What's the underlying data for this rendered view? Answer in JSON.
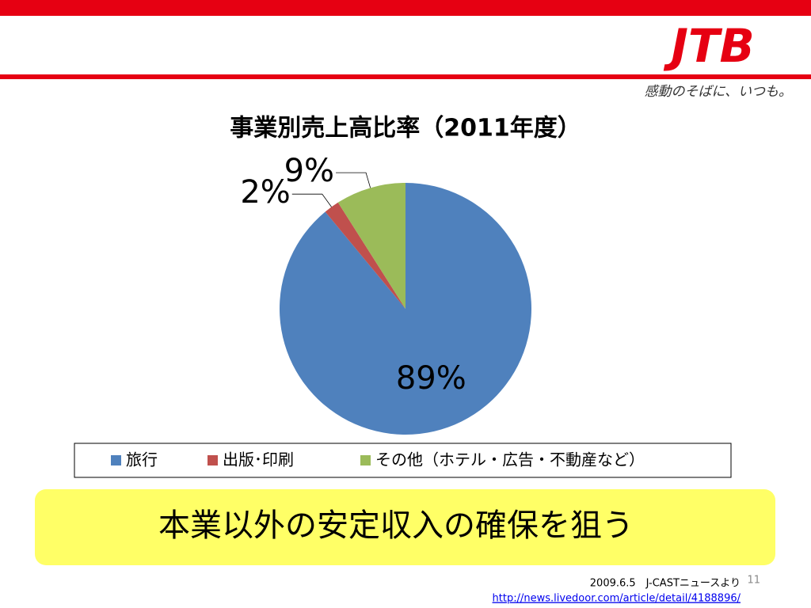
{
  "header": {
    "logo": "JTB",
    "tagline": "感動のそばに、いつも。"
  },
  "chart_data": {
    "type": "pie",
    "title": "事業別売上高比率（2011年度）",
    "categories": [
      "旅行",
      "出版･印刷",
      "その他（ホテル・広告・不動産など）"
    ],
    "values": [
      89,
      2,
      9
    ],
    "value_labels": [
      "89%",
      "2%",
      "9%"
    ],
    "colors": [
      "#4f81bd",
      "#c0504d",
      "#9bbb59"
    ],
    "legend": "bottom"
  },
  "banner": "本業以外の安定収入の確保を狙う",
  "footer": {
    "source": "2009.6.5　J-CASTニュースより",
    "url": "http://news.livedoor.com/article/detail/4188896/",
    "page": "11"
  }
}
